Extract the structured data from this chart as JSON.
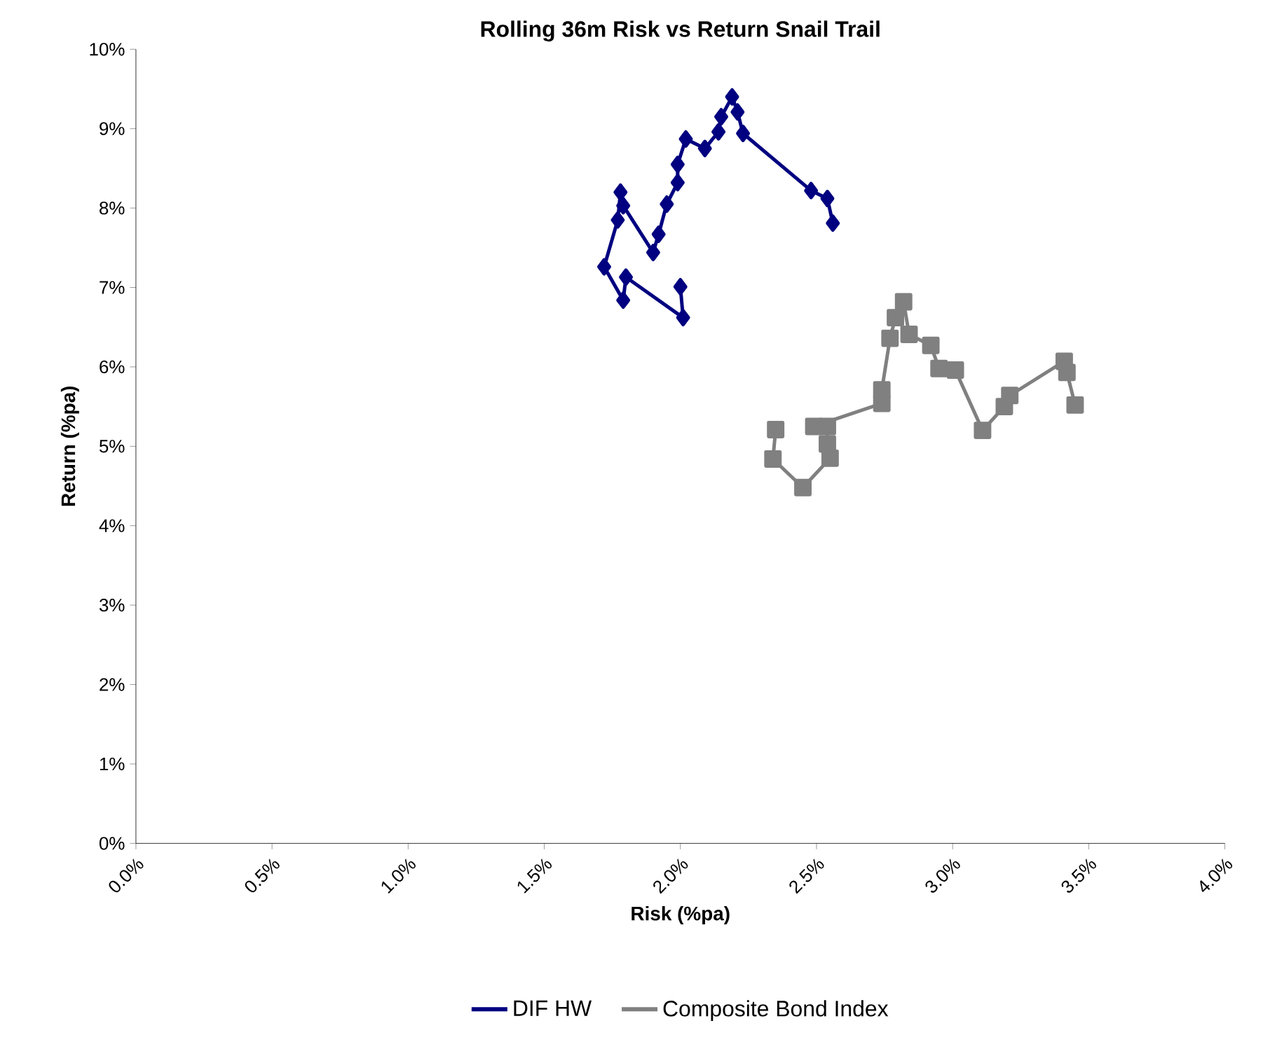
{
  "chart_data": {
    "type": "line",
    "title": "Rolling 36m Risk vs Return Snail Trail",
    "xlabel": "Risk (%pa)",
    "ylabel": "Return (%pa)",
    "xlim": [
      0,
      4
    ],
    "ylim": [
      0,
      10
    ],
    "xticks": [
      {
        "value": 0,
        "label": "0.0%"
      },
      {
        "value": 0.5,
        "label": "0.5%"
      },
      {
        "value": 1,
        "label": "1.0%"
      },
      {
        "value": 1.5,
        "label": "1.5%"
      },
      {
        "value": 2,
        "label": "2.0%"
      },
      {
        "value": 2.5,
        "label": "2.5%"
      },
      {
        "value": 3,
        "label": "3.0%"
      },
      {
        "value": 3.5,
        "label": "3.5%"
      },
      {
        "value": 4,
        "label": "4.0%"
      }
    ],
    "yticks": [
      {
        "value": 0,
        "label": "0%"
      },
      {
        "value": 1,
        "label": "1%"
      },
      {
        "value": 2,
        "label": "2%"
      },
      {
        "value": 3,
        "label": "3%"
      },
      {
        "value": 4,
        "label": "4%"
      },
      {
        "value": 5,
        "label": "5%"
      },
      {
        "value": 6,
        "label": "6%"
      },
      {
        "value": 7,
        "label": "7%"
      },
      {
        "value": 8,
        "label": "8%"
      },
      {
        "value": 9,
        "label": "9%"
      },
      {
        "value": 10,
        "label": "10%"
      }
    ],
    "grid": false,
    "legend": "bottom",
    "line_style": "solid",
    "series": [
      {
        "name": "DIF HW",
        "color": "#000080",
        "marker": "diamond",
        "x": [
          2.56,
          2.54,
          2.48,
          2.23,
          2.21,
          2.19,
          2.15,
          2.14,
          2.09,
          2.02,
          1.99,
          1.99,
          1.95,
          1.92,
          1.9,
          1.79,
          1.78,
          1.77,
          1.72,
          1.79,
          1.8,
          2.01,
          2.0
        ],
        "values": [
          7.81,
          8.12,
          8.22,
          8.94,
          9.21,
          9.4,
          9.15,
          8.96,
          8.75,
          8.87,
          8.55,
          8.32,
          8.05,
          7.67,
          7.44,
          8.03,
          8.2,
          7.85,
          7.26,
          6.84,
          7.13,
          6.62,
          7.01
        ]
      },
      {
        "name": "Composite Bond Index",
        "color": "#808080",
        "marker": "square",
        "x": [
          2.35,
          2.34,
          2.45,
          2.55,
          2.54,
          2.54,
          2.49,
          2.74,
          2.74,
          2.77,
          2.79,
          2.82,
          2.84,
          2.92,
          2.95,
          3.01,
          3.11,
          3.19,
          3.21,
          3.41,
          3.42,
          3.45
        ],
        "values": [
          5.21,
          4.84,
          4.48,
          4.85,
          5.03,
          5.25,
          5.25,
          5.54,
          5.71,
          6.36,
          6.62,
          6.82,
          6.41,
          6.27,
          5.98,
          5.96,
          5.2,
          5.5,
          5.64,
          6.07,
          5.93,
          5.52
        ]
      }
    ]
  }
}
